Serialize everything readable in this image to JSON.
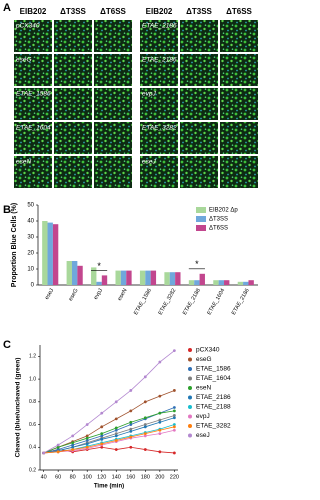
{
  "panel_labels": [
    "A",
    "B",
    "C"
  ],
  "micrographs": {
    "headers": [
      "EIB202",
      "ΔT3SS",
      "ΔT6SS",
      "EIB202",
      "ΔT3SS",
      "ΔT6SS"
    ],
    "left_rows": [
      "pCX340",
      "eseG",
      "ETAE_1586",
      "ETAE_1604",
      "eseN"
    ],
    "right_rows": [
      "ETAE_2186",
      "ETAE_2186",
      "evpJ",
      "ETAE_3282",
      "eseJ"
    ]
  },
  "chart_data": [
    {
      "type": "bar",
      "ylabel": "Proportion Blue Cells (%)",
      "categories": [
        "eseJ",
        "eseG",
        "evpJ",
        "eseN",
        "ETAE_1586",
        "ETAE_3282",
        "ETAE_2188",
        "ETAE_1604",
        "ETAE_2186"
      ],
      "series": [
        {
          "name": "EIB202 Δp",
          "color": "#a9d89b",
          "values": [
            40,
            15,
            11,
            9,
            9,
            8,
            3,
            3,
            2
          ]
        },
        {
          "name": "ΔT3SS",
          "color": "#6fa8dc",
          "values": [
            39,
            15,
            2,
            9,
            9,
            8,
            3,
            3,
            2
          ]
        },
        {
          "name": "ΔT6SS",
          "color": "#c2468e",
          "values": [
            38,
            12,
            6,
            9,
            9,
            8,
            7,
            3,
            3
          ]
        }
      ],
      "annotations": [
        "*",
        "*"
      ],
      "ylim": [
        0,
        50
      ],
      "yticks": [
        0,
        10,
        20,
        30,
        40,
        50
      ]
    },
    {
      "type": "line",
      "ylabel": "Cleaved (blue/uncleaved (green)",
      "xlabel": "Time (min)",
      "x": [
        40,
        60,
        80,
        100,
        120,
        140,
        160,
        180,
        200,
        220
      ],
      "xlim": [
        35,
        225
      ],
      "xticks": [
        40,
        60,
        80,
        100,
        120,
        140,
        160,
        180,
        200,
        220
      ],
      "ylim": [
        0.2,
        1.3
      ],
      "yticks": [
        0.2,
        0.4,
        0.6,
        0.8,
        {
          "value": 1,
          "label": "1.0"
        },
        1.2
      ],
      "series": [
        {
          "name": "pCX340",
          "color": "#d62728",
          "values": [
            0.35,
            0.38,
            0.36,
            0.38,
            0.4,
            0.38,
            0.4,
            0.38,
            0.36,
            0.35
          ]
        },
        {
          "name": "eseG",
          "color": "#a0522d",
          "values": [
            0.35,
            0.4,
            0.45,
            0.5,
            0.58,
            0.65,
            0.72,
            0.8,
            0.85,
            0.9
          ]
        },
        {
          "name": "ETAE_1586",
          "color": "#2f6fb5",
          "values": [
            0.35,
            0.38,
            0.42,
            0.46,
            0.5,
            0.55,
            0.6,
            0.65,
            0.7,
            0.75
          ]
        },
        {
          "name": "ETAE_1604",
          "color": "#7f7f7f",
          "values": [
            0.35,
            0.37,
            0.4,
            0.44,
            0.48,
            0.52,
            0.56,
            0.6,
            0.64,
            0.68
          ]
        },
        {
          "name": "eseN",
          "color": "#2ca02c",
          "values": [
            0.35,
            0.4,
            0.44,
            0.48,
            0.52,
            0.57,
            0.62,
            0.66,
            0.7,
            0.72
          ]
        },
        {
          "name": "ETAE_2186",
          "color": "#1f77b4",
          "values": [
            0.35,
            0.37,
            0.4,
            0.43,
            0.47,
            0.5,
            0.54,
            0.58,
            0.62,
            0.66
          ]
        },
        {
          "name": "ETAE_2188",
          "color": "#17becf",
          "values": [
            0.35,
            0.36,
            0.38,
            0.41,
            0.44,
            0.47,
            0.5,
            0.53,
            0.56,
            0.6
          ]
        },
        {
          "name": "evpJ",
          "color": "#e377c2",
          "values": [
            0.35,
            0.36,
            0.37,
            0.39,
            0.42,
            0.45,
            0.48,
            0.5,
            0.52,
            0.55
          ]
        },
        {
          "name": "ETAE_3282",
          "color": "#ff7f0e",
          "values": [
            0.35,
            0.36,
            0.38,
            0.4,
            0.43,
            0.46,
            0.49,
            0.52,
            0.55,
            0.58
          ]
        },
        {
          "name": "eseJ",
          "color": "#b388d0",
          "values": [
            0.35,
            0.42,
            0.5,
            0.6,
            0.7,
            0.8,
            0.9,
            1.02,
            1.15,
            1.25
          ]
        }
      ]
    }
  ]
}
